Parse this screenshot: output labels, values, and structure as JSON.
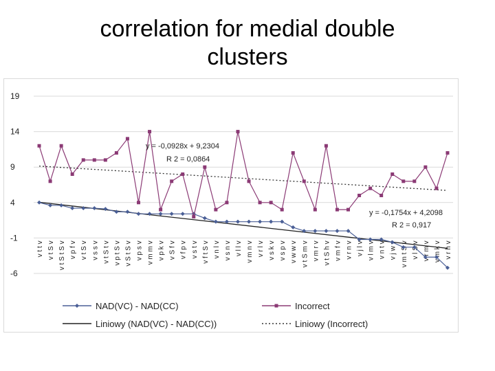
{
  "title_lines": [
    "correlation for medial double",
    "clusters"
  ],
  "chart_data": {
    "type": "line",
    "ylim": [
      -6,
      19
    ],
    "yticks": [
      -6,
      -1,
      4,
      9,
      14,
      19
    ],
    "categories": [
      "v t t v",
      "v t S v",
      "v t S t S v",
      "v p f v",
      "v t S v",
      "v s s v",
      "v t S t v",
      "v p t S v",
      "v S t S v",
      "v p s v",
      "v m m v",
      "v p k v",
      "v S f v",
      "v f p v",
      "v s t v",
      "v f t S v",
      "v n l v",
      "v s n v",
      "v l l v",
      "v m n v",
      "v r l v",
      "v s k v",
      "v s p v",
      "v w w v",
      "v t S m v",
      "v m r v",
      "v t S h v",
      "v m f v",
      "v r n v",
      "v j l v",
      "v l m v",
      "v n t v",
      "v j w v",
      "v m t S v",
      "v l S v",
      "v r m v",
      "v m k v",
      "v r h v"
    ],
    "series": [
      {
        "name": "NAD(VC) - NAD(CC)",
        "color": "#4a5f96",
        "marker": "diamond",
        "values": [
          4.0,
          3.6,
          3.6,
          3.2,
          3.2,
          3.2,
          3.1,
          2.7,
          2.7,
          2.4,
          2.4,
          2.4,
          2.4,
          2.4,
          2.4,
          1.8,
          1.3,
          1.3,
          1.3,
          1.3,
          1.3,
          1.3,
          1.3,
          0.5,
          0.0,
          0.0,
          0.0,
          0.0,
          0.0,
          -1.2,
          -1.2,
          -1.2,
          -1.6,
          -2.3,
          -2.3,
          -3.7,
          -3.7,
          -5.2
        ]
      },
      {
        "name": "Incorrect",
        "color": "#8b3a75",
        "marker": "square",
        "values": [
          12,
          7,
          12,
          8,
          10,
          10,
          10,
          11,
          13,
          4,
          14,
          3,
          7,
          8,
          2,
          9,
          3,
          4,
          14,
          7,
          4,
          4,
          3,
          11,
          7,
          3,
          12,
          3,
          3,
          5,
          6,
          5,
          8,
          7,
          7,
          9,
          6,
          11
        ]
      }
    ],
    "trendlines": [
      {
        "series": "Incorrect",
        "slope": -0.0928,
        "intercept": 9.2304,
        "style": "dotted",
        "color": "#333333"
      },
      {
        "series": "NAD(VC) - NAD(CC)",
        "slope": -0.1754,
        "intercept": 4.2098,
        "style": "solid",
        "color": "#222222"
      }
    ],
    "annotations": [
      {
        "line1": "y = -0,0928x + 9,2304",
        "line2": "R 2 = 0,0864"
      },
      {
        "line1": "y = -0,1754x + 4,2098",
        "line2": "R 2 = 0,917"
      }
    ],
    "legend": [
      {
        "label": "NAD(VC) - NAD(CC)",
        "kind": "series-diamond",
        "color": "#4a5f96"
      },
      {
        "label": "Incorrect",
        "kind": "series-square",
        "color": "#8b3a75"
      },
      {
        "label": "Liniowy (NAD(VC) - NAD(CC))",
        "kind": "solid",
        "color": "#222222"
      },
      {
        "label": "Liniowy (Incorrect)",
        "kind": "dotted",
        "color": "#333333"
      }
    ],
    "legend_position": "bottom",
    "xlabel": "",
    "ylabel": ""
  }
}
